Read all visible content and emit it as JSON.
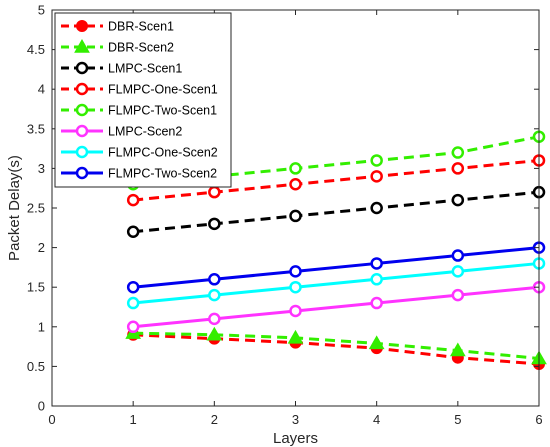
{
  "chart_data": {
    "type": "line",
    "xlabel": "Layers",
    "ylabel": "Packet Delay(s)",
    "xlim": [
      0,
      6
    ],
    "ylim": [
      0,
      5
    ],
    "xticks": [
      "0",
      "1",
      "2",
      "3",
      "4",
      "5",
      "6"
    ],
    "yticks": [
      "0",
      "0.5",
      "1",
      "1.5",
      "2",
      "2.5",
      "3",
      "3.5",
      "4",
      "4.5",
      "5"
    ],
    "grid": false,
    "legend_position": "top-left",
    "x": [
      1,
      2,
      3,
      4,
      5,
      6
    ],
    "series": [
      {
        "name": "DBR-Scen1",
        "color": "#ff0000",
        "dash": "dashed",
        "marker": "filled-circle",
        "values": [
          0.9,
          0.85,
          0.8,
          0.73,
          0.61,
          0.53
        ]
      },
      {
        "name": "DBR-Scen2",
        "color": "#33ee00",
        "dash": "dashed",
        "marker": "filled-triangle",
        "values": [
          0.92,
          0.9,
          0.86,
          0.79,
          0.7,
          0.6
        ]
      },
      {
        "name": "LMPC-Scen1",
        "color": "#000000",
        "dash": "dashed",
        "marker": "open-circle",
        "values": [
          2.2,
          2.3,
          2.4,
          2.5,
          2.6,
          2.7
        ]
      },
      {
        "name": "FLMPC-One-Scen1",
        "color": "#ff0000",
        "dash": "dashed",
        "marker": "open-circle",
        "values": [
          2.6,
          2.7,
          2.8,
          2.9,
          3.0,
          3.1
        ]
      },
      {
        "name": "FLMPC-Two-Scen1",
        "color": "#33ee00",
        "dash": "dashed",
        "marker": "open-circle",
        "values": [
          2.8,
          2.9,
          3.0,
          3.1,
          3.2,
          3.4
        ]
      },
      {
        "name": "LMPC-Scen2",
        "color": "#ff33ff",
        "dash": "solid",
        "marker": "open-circle",
        "values": [
          1.0,
          1.1,
          1.2,
          1.3,
          1.4,
          1.5
        ]
      },
      {
        "name": "FLMPC-One-Scen2",
        "color": "#00ffff",
        "dash": "solid",
        "marker": "open-circle",
        "values": [
          1.3,
          1.4,
          1.5,
          1.6,
          1.7,
          1.8
        ]
      },
      {
        "name": "FLMPC-Two-Scen2",
        "color": "#0000ee",
        "dash": "solid",
        "marker": "open-circle",
        "values": [
          1.5,
          1.6,
          1.7,
          1.8,
          1.9,
          2.0
        ]
      }
    ]
  }
}
